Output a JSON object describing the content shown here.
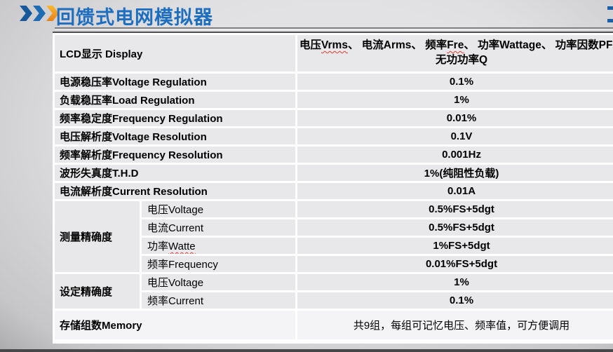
{
  "slide": {
    "title": "回馈式电网模拟器",
    "title_color": "#1e6ec0",
    "chevron_colors": [
      "#15599c",
      "#1d6cb4",
      "#f0961f"
    ]
  },
  "table": {
    "header_row": {
      "label": "LCD显示 Display",
      "value_parts": [
        {
          "t": "电压"
        },
        {
          "t": "Vrms",
          "wavy": true
        },
        {
          "t": "、 电流Arms、 频率"
        },
        {
          "t": "Fre",
          "wavy": true
        },
        {
          "t": "、 功率Wattage、 功率因数PF、 无功功率Q"
        }
      ]
    },
    "simple_rows": [
      {
        "label": "电源稳压率Voltage Regulation",
        "value": "0.1%"
      },
      {
        "label": "负载稳压率Load Regulation",
        "value": "1%"
      },
      {
        "label": "频率稳定度Frequency Regulation",
        "value": "0.01%"
      },
      {
        "label": "电压解析度Voltage Resolution",
        "value": "0.1V"
      },
      {
        "label": "频率解析度Frequency Resolution",
        "value": "0.001Hz"
      },
      {
        "label": "波形失真度T.H.D",
        "value": "1%(纯阻性负载)"
      },
      {
        "label": "电流解析度Current Resolution",
        "value": "0.01A"
      }
    ],
    "groups": [
      {
        "label": "测量精确度",
        "subs": [
          {
            "label_parts": [
              {
                "t": "电压Voltage"
              }
            ],
            "value": "0.5%FS+5dgt"
          },
          {
            "label_parts": [
              {
                "t": "电流Current"
              }
            ],
            "value": "0.5%FS+5dgt"
          },
          {
            "label_parts": [
              {
                "t": "功率"
              },
              {
                "t": "Watte",
                "wavy": true
              }
            ],
            "value": "1%FS+5dgt"
          },
          {
            "label_parts": [
              {
                "t": "频率Frequency"
              }
            ],
            "value": "0.01%FS+5dgt"
          }
        ]
      },
      {
        "label": "设定精确度",
        "subs": [
          {
            "label_parts": [
              {
                "t": "电压Voltage"
              }
            ],
            "value": "1%"
          },
          {
            "label_parts": [
              {
                "t": "频率Current"
              }
            ],
            "value": "0.1%"
          }
        ]
      }
    ],
    "memory_row": {
      "label": "存储组数Memory",
      "value": "共9组，每组可记忆电压、频率值，可方便调用"
    }
  }
}
